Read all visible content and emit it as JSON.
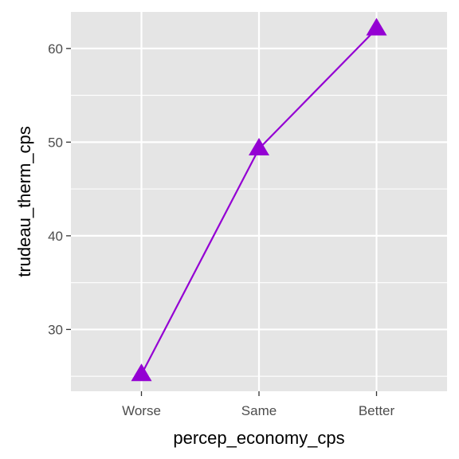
{
  "chart_data": {
    "type": "line",
    "categories": [
      "Worse",
      "Same",
      "Better"
    ],
    "series": [
      {
        "values": [
          25.2,
          49.3,
          62.1
        ]
      }
    ],
    "xlabel": "percep_economy_cps",
    "ylabel": "trudeau_therm_cps",
    "ylim": [
      23.4,
      63.9
    ],
    "yticks": [
      30,
      40,
      50,
      60
    ],
    "y_minor_ticks": [
      25,
      35,
      45,
      55
    ],
    "grid": true,
    "marker": "triangle",
    "colors": {
      "series": "#9400d3",
      "panel_background": "#e5e5e5",
      "grid": "#ffffff",
      "tick_label": "#4d4d4d",
      "axis_title": "#000000"
    }
  }
}
